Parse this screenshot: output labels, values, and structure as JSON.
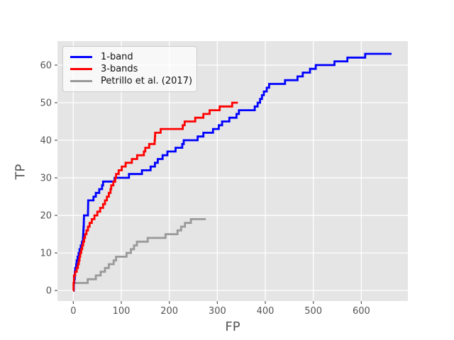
{
  "figure": {
    "background": "#ffffff",
    "plot_background": "#e5e5e5",
    "grid_color": "#ffffff",
    "tick_color": "#555555",
    "text_color": "#555555"
  },
  "legend": {
    "items": [
      {
        "label": "1-band",
        "color": "#0000ff"
      },
      {
        "label": "3-bands",
        "color": "#ff0000"
      },
      {
        "label": "Petrillo et al. (2017)",
        "color": "#999999"
      }
    ]
  },
  "chart_data": {
    "type": "line",
    "style": "step-after",
    "title": "",
    "xlabel": "FP",
    "ylabel": "TP",
    "xlim": [
      -33,
      697
    ],
    "ylim": [
      -2.8,
      66.4
    ],
    "xticks": [
      0,
      100,
      200,
      300,
      400,
      500,
      600
    ],
    "yticks": [
      0,
      10,
      20,
      30,
      40,
      50,
      60
    ],
    "grid": true,
    "legend_position": "upper-left",
    "line_width": 2.8,
    "series": [
      {
        "name": "1-band",
        "color": "#0000ff",
        "points": [
          [
            0,
            0
          ],
          [
            1,
            2
          ],
          [
            2,
            3
          ],
          [
            3,
            5
          ],
          [
            4,
            6
          ],
          [
            6,
            7
          ],
          [
            7,
            8
          ],
          [
            9,
            9
          ],
          [
            11,
            10
          ],
          [
            13,
            11
          ],
          [
            15.5,
            12
          ],
          [
            18,
            13
          ],
          [
            20,
            14
          ],
          [
            20.5,
            15
          ],
          [
            21,
            16
          ],
          [
            21.4,
            17
          ],
          [
            21.8,
            18
          ],
          [
            22,
            19
          ],
          [
            22.2,
            20
          ],
          [
            30.5,
            21
          ],
          [
            30.7,
            22
          ],
          [
            30.8,
            23
          ],
          [
            31,
            24
          ],
          [
            42,
            25
          ],
          [
            47,
            26
          ],
          [
            54,
            27
          ],
          [
            60,
            28
          ],
          [
            62,
            29
          ],
          [
            86,
            30
          ],
          [
            116,
            31
          ],
          [
            143,
            32
          ],
          [
            161,
            33
          ],
          [
            170,
            34
          ],
          [
            176,
            35
          ],
          [
            186,
            36
          ],
          [
            196,
            37
          ],
          [
            213,
            38
          ],
          [
            227,
            39
          ],
          [
            230,
            40
          ],
          [
            259,
            41
          ],
          [
            271,
            42
          ],
          [
            291,
            43
          ],
          [
            303,
            44
          ],
          [
            310,
            45
          ],
          [
            325,
            46
          ],
          [
            340,
            47
          ],
          [
            345,
            48
          ],
          [
            378,
            49
          ],
          [
            384,
            50
          ],
          [
            389,
            51
          ],
          [
            393,
            52
          ],
          [
            397,
            53
          ],
          [
            403,
            54
          ],
          [
            408,
            55
          ],
          [
            441,
            56
          ],
          [
            467,
            57
          ],
          [
            478,
            58
          ],
          [
            493,
            59
          ],
          [
            505,
            60
          ],
          [
            544,
            61
          ],
          [
            571,
            62
          ],
          [
            608,
            63
          ],
          [
            663,
            63
          ]
        ]
      },
      {
        "name": "3-bands",
        "color": "#ff0000",
        "points": [
          [
            0,
            0
          ],
          [
            0.5,
            2
          ],
          [
            1.5,
            4
          ],
          [
            4,
            5
          ],
          [
            7,
            6
          ],
          [
            9.5,
            7
          ],
          [
            11.5,
            8
          ],
          [
            13,
            9
          ],
          [
            14.5,
            10
          ],
          [
            16.5,
            11
          ],
          [
            18.5,
            12
          ],
          [
            20.5,
            13
          ],
          [
            22.5,
            14
          ],
          [
            24.5,
            15
          ],
          [
            27.5,
            16
          ],
          [
            30.5,
            17
          ],
          [
            34,
            18
          ],
          [
            38.5,
            19
          ],
          [
            44,
            20
          ],
          [
            50,
            21
          ],
          [
            56,
            22
          ],
          [
            62,
            23
          ],
          [
            66,
            24
          ],
          [
            70,
            25
          ],
          [
            74,
            26
          ],
          [
            77.5,
            27
          ],
          [
            79,
            28
          ],
          [
            83.5,
            29
          ],
          [
            87.5,
            30
          ],
          [
            89,
            31
          ],
          [
            94.5,
            32
          ],
          [
            101,
            33
          ],
          [
            109,
            34
          ],
          [
            122,
            35
          ],
          [
            133,
            36
          ],
          [
            147,
            37
          ],
          [
            150,
            38
          ],
          [
            158,
            39
          ],
          [
            169.5,
            40
          ],
          [
            170,
            41
          ],
          [
            170.5,
            42
          ],
          [
            182,
            43
          ],
          [
            228,
            44
          ],
          [
            232,
            45
          ],
          [
            254,
            46
          ],
          [
            271,
            47
          ],
          [
            284,
            48
          ],
          [
            305,
            49
          ],
          [
            331,
            50
          ],
          [
            343,
            50
          ]
        ]
      },
      {
        "name": "Petrillo et al. (2017)",
        "color": "#999999",
        "points": [
          [
            0,
            0
          ],
          [
            1,
            2
          ],
          [
            30,
            3
          ],
          [
            47,
            4
          ],
          [
            57,
            5
          ],
          [
            66,
            6
          ],
          [
            74,
            7
          ],
          [
            84,
            8
          ],
          [
            89,
            9
          ],
          [
            111,
            10
          ],
          [
            120,
            11
          ],
          [
            126.5,
            12
          ],
          [
            132.5,
            13
          ],
          [
            155,
            14
          ],
          [
            192,
            15
          ],
          [
            217,
            16
          ],
          [
            224.5,
            17
          ],
          [
            232.5,
            18
          ],
          [
            245,
            19
          ],
          [
            276,
            19
          ]
        ]
      }
    ]
  }
}
